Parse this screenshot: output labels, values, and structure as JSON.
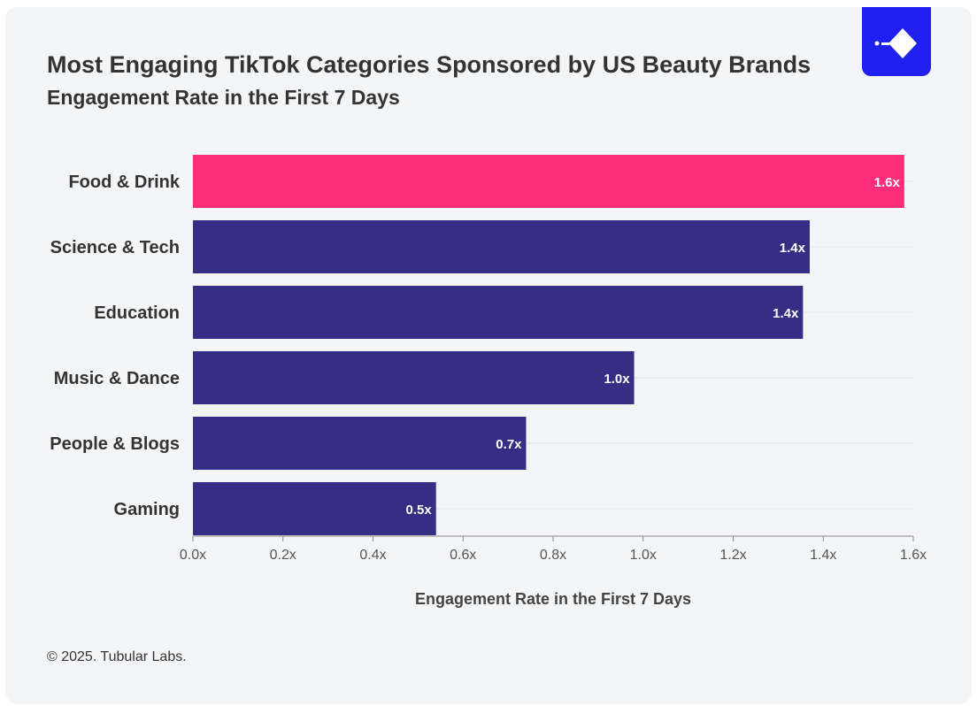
{
  "header": {
    "title": "Most Engaging TikTok Categories Sponsored by US Beauty Brands",
    "subtitle": "Engagement Rate in the First 7 Days"
  },
  "footer": {
    "copyright": "© 2025. Tubular Labs."
  },
  "logo": {
    "icon": "tubular-labs-logo-icon",
    "background_color": "#2020f0"
  },
  "chart_data": {
    "type": "bar",
    "orientation": "horizontal",
    "categories": [
      "Food & Drink",
      "Science & Tech",
      "Education",
      "Music & Dance",
      "People & Blogs",
      "Gaming"
    ],
    "values": [
      1.58,
      1.37,
      1.355,
      0.98,
      0.74,
      0.54
    ],
    "value_labels": [
      "1.6x",
      "1.4x",
      "1.4x",
      "1.0x",
      "0.7x",
      "0.5x"
    ],
    "colors": [
      "#ff2d7a",
      "#352e85",
      "#352e85",
      "#352e85",
      "#352e85",
      "#352e85"
    ],
    "xlabel": "Engagement Rate in the First 7 Days",
    "xlim": [
      0,
      1.6
    ],
    "xticks": [
      0,
      0.2,
      0.4,
      0.6,
      0.8,
      1.0,
      1.2,
      1.4,
      1.6
    ],
    "xtick_labels": [
      "0.0x",
      "0.2x",
      "0.4x",
      "0.6x",
      "0.8x",
      "1.0x",
      "1.2x",
      "1.4x",
      "1.6x"
    ],
    "grid": true
  }
}
